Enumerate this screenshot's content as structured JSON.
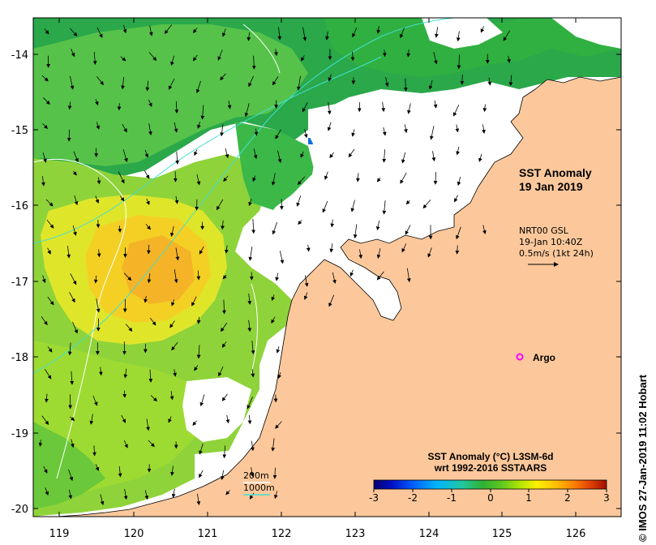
{
  "map": {
    "title_line1": "SST Anomaly",
    "title_line2": "19 Jan 2019",
    "info": {
      "line1": "NRT00 GSL",
      "line2": "19-Jan 10:40Z",
      "line3": "0.5m/s (1kt 24h)"
    },
    "argo_label": "Argo",
    "credit": "© IMOS 27-Jan-2019 11:02 Hobart",
    "bathymetry": {
      "label_200": "200m",
      "label_1000": "1000m",
      "color_200": "#ffffff",
      "color_1000": "#40e0d0"
    },
    "x_ticks": [
      "119",
      "120",
      "121",
      "122",
      "123",
      "124",
      "125",
      "126"
    ],
    "y_ticks": [
      "-14",
      "-15",
      "-16",
      "-17",
      "-18",
      "-19",
      "-20"
    ],
    "lon_range": [
      118.7,
      126.7
    ],
    "lat_range": [
      -20.1,
      -13.5
    ],
    "land_color": "#fcc89b",
    "argo_position": {
      "lon": 125.35,
      "lat": -18.0
    },
    "colorbar": {
      "title_line1": "SST Anomaly (°C) L3SM-6d",
      "title_line2": "wrt 1992-2016 SSTAARS",
      "ticks": [
        "-3",
        "-2",
        "-1",
        "0",
        "1",
        "2",
        "3"
      ],
      "range": [
        -3,
        3
      ],
      "colors": [
        "#08006e",
        "#0010c8",
        "#0060ff",
        "#00b4ff",
        "#20c8a0",
        "#30b030",
        "#60c820",
        "#b4e600",
        "#fff000",
        "#ffc000",
        "#ff8000",
        "#e04000",
        "#a01000"
      ]
    }
  }
}
